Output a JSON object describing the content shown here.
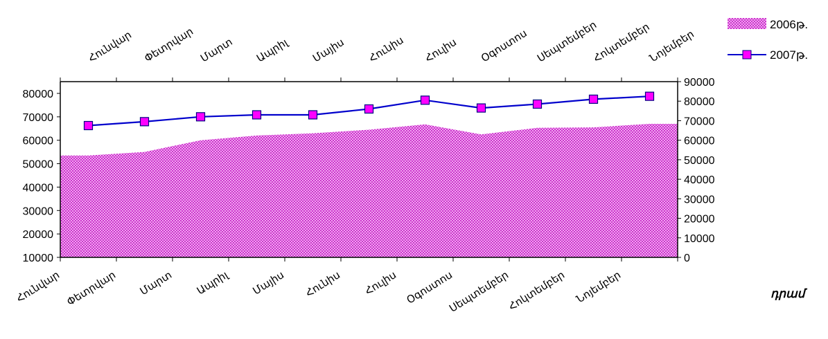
{
  "chart_data": {
    "type": "area+line",
    "categories": [
      "Հունվար",
      "Փետրվար",
      "Մարտ",
      "Ապրիլ",
      "Մայիս",
      "Հունիս",
      "Հուլիս",
      "Օգոստոս",
      "Սեպտեմբեր",
      "Հոկտեմբեր",
      "Նոյեմբեր"
    ],
    "series": [
      {
        "name": "2006թ.",
        "type": "area",
        "axis": "left",
        "color": "#cc33cc",
        "values": [
          53500,
          55000,
          60000,
          62000,
          63000,
          64500,
          66800,
          62500,
          65300,
          65500,
          67000
        ]
      },
      {
        "name": "2007թ.",
        "type": "line",
        "axis": "right",
        "line_color": "#0000cc",
        "marker_color": "#ff00ff",
        "values": [
          67500,
          69500,
          72000,
          73000,
          73000,
          76000,
          80500,
          76500,
          78500,
          81000,
          82500
        ]
      }
    ],
    "left_axis": {
      "min": 10000,
      "max": 80000,
      "ticks": [
        10000,
        20000,
        30000,
        40000,
        50000,
        60000,
        70000,
        80000
      ]
    },
    "right_axis": {
      "min": 0,
      "max": 90000,
      "ticks": [
        0,
        10000,
        20000,
        30000,
        40000,
        50000,
        60000,
        70000,
        80000,
        90000
      ]
    },
    "unit_label": "դրամ",
    "legend_position": "top-right",
    "grid": false
  }
}
